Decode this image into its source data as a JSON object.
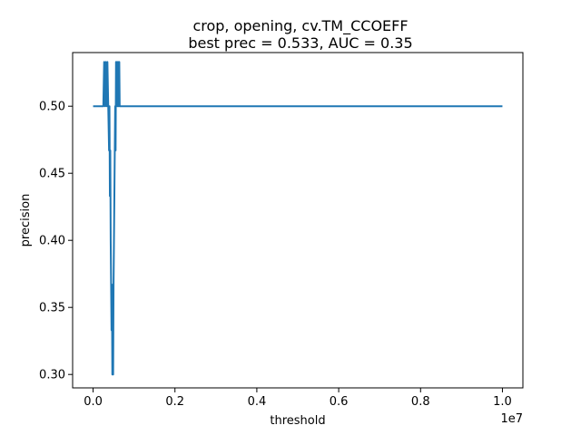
{
  "chart_data": {
    "type": "line",
    "title_line1": "crop, opening, cv.TM_CCOEFF",
    "title_line2": "best prec = 0.533, AUC = 0.35",
    "xlabel": "threshold",
    "ylabel": "precision",
    "x_scale_label": "1e7",
    "xlim": [
      -0.05,
      1.05
    ],
    "ylim": [
      0.29,
      0.54
    ],
    "x_ticks": [
      0.0,
      0.2,
      0.4,
      0.6,
      0.8,
      1.0
    ],
    "x_tick_labels": [
      "0.0",
      "0.2",
      "0.4",
      "0.6",
      "0.8",
      "1.0"
    ],
    "y_ticks": [
      0.3,
      0.35,
      0.4,
      0.45,
      0.5
    ],
    "y_tick_labels": [
      "0.30",
      "0.35",
      "0.40",
      "0.45",
      "0.50"
    ],
    "grid": false,
    "color": "#1f77b4",
    "series": [
      {
        "x": [
          0.0,
          0.025,
          0.027,
          0.029,
          0.031,
          0.033,
          0.035,
          0.037,
          0.039,
          0.04,
          0.041,
          0.042,
          0.043,
          0.044,
          0.045,
          0.046,
          0.047,
          0.048,
          0.049,
          0.05,
          0.051,
          0.052,
          0.053,
          0.054,
          0.055,
          0.056,
          0.057,
          0.058,
          0.059,
          0.06,
          0.061,
          0.062,
          0.063,
          0.064,
          0.065,
          0.066,
          0.1,
          0.4,
          0.7,
          1.0
        ],
        "y": [
          0.5,
          0.5,
          0.533,
          0.5,
          0.533,
          0.5,
          0.533,
          0.5,
          0.467,
          0.5,
          0.433,
          0.467,
          0.4,
          0.367,
          0.333,
          0.367,
          0.3,
          0.333,
          0.3,
          0.367,
          0.4,
          0.433,
          0.467,
          0.5,
          0.467,
          0.533,
          0.5,
          0.533,
          0.5,
          0.533,
          0.5,
          0.533,
          0.5,
          0.533,
          0.5,
          0.5,
          0.5,
          0.5,
          0.5,
          0.5
        ]
      }
    ]
  }
}
